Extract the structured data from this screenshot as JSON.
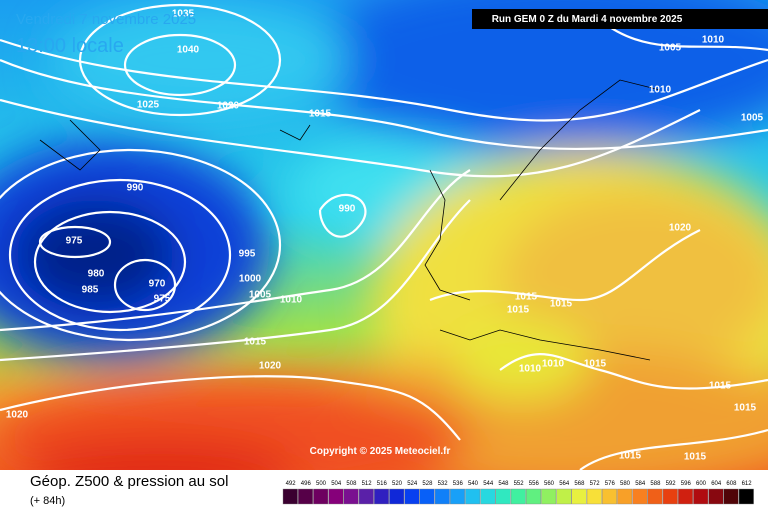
{
  "header": {
    "date": "Vendredi 7 novembre 2025",
    "time": "13:00 locale",
    "run": "Run GEM 0 Z du Mardi 4 novembre 2025"
  },
  "map": {
    "copyright": "Copyright © 2025 Meteociel.fr",
    "isobars": [
      1035,
      1040,
      1025,
      1020,
      1015,
      990,
      990,
      975,
      980,
      985,
      970,
      975,
      995,
      1000,
      1005,
      1010,
      1015,
      1020,
      1020,
      1005,
      1010,
      1010,
      1005,
      1020,
      1015,
      1015,
      1015,
      1010,
      1010,
      1015,
      1015,
      1015,
      1015,
      1015
    ]
  },
  "footer": {
    "title": "Géop. Z500 & pression au sol",
    "lead": "(+ 84h)",
    "scale": [
      492,
      496,
      500,
      504,
      508,
      512,
      516,
      520,
      524,
      528,
      532,
      536,
      540,
      544,
      548,
      552,
      556,
      560,
      564,
      568,
      572,
      576,
      580,
      584,
      588,
      592,
      596,
      600,
      604,
      608,
      612
    ]
  }
}
